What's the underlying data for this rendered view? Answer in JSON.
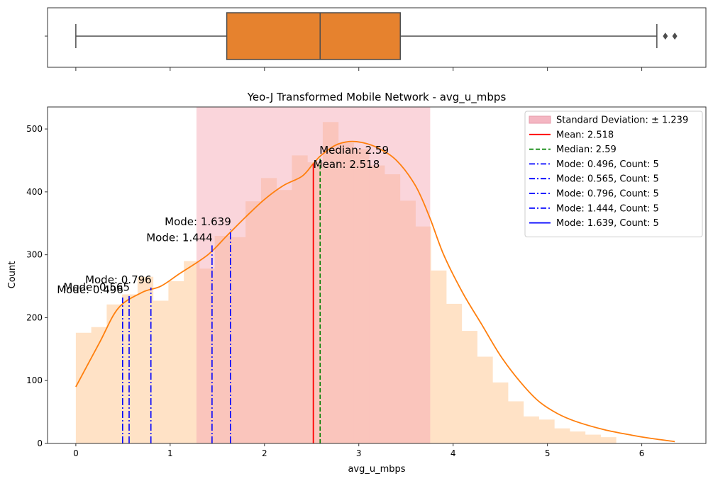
{
  "chart_data": [
    {
      "type": "box",
      "xlim": [
        -0.3,
        6.68
      ],
      "whisker_low": 0.0,
      "q1": 1.6,
      "median": 2.59,
      "q3": 3.44,
      "whisker_high": 6.16,
      "outliers": [
        6.25,
        6.35
      ],
      "xticks": [
        0,
        1,
        2,
        3,
        4,
        5,
        6
      ]
    },
    {
      "type": "histogram",
      "title": "Yeo-J Transformed Mobile Network - avg_u_mbps",
      "xlabel": "avg_u_mbps",
      "ylabel": "Count",
      "xlim": [
        -0.3,
        6.68
      ],
      "ylim": [
        0,
        535
      ],
      "xticks": [
        0,
        1,
        2,
        3,
        4,
        5,
        6
      ],
      "yticks": [
        0,
        100,
        200,
        300,
        400,
        500
      ],
      "bin_width": 0.1636,
      "bins_start": 0.0,
      "counts": [
        176,
        185,
        221,
        237,
        265,
        227,
        258,
        290,
        278,
        330,
        328,
        385,
        422,
        403,
        458,
        447,
        511,
        478,
        468,
        442,
        428,
        386,
        345,
        275,
        222,
        179,
        138,
        97,
        67,
        43,
        38,
        24,
        19,
        14,
        10
      ],
      "kde": [
        [
          0,
          90
        ],
        [
          0.25,
          160
        ],
        [
          0.45,
          215
        ],
        [
          0.7,
          240
        ],
        [
          0.9,
          250
        ],
        [
          1.1,
          270
        ],
        [
          1.4,
          300
        ],
        [
          1.6,
          330
        ],
        [
          1.8,
          360
        ],
        [
          2.0,
          388
        ],
        [
          2.2,
          410
        ],
        [
          2.4,
          425
        ],
        [
          2.518,
          445
        ],
        [
          2.6,
          458
        ],
        [
          2.75,
          474
        ],
        [
          2.9,
          480
        ],
        [
          3.05,
          478
        ],
        [
          3.2,
          470
        ],
        [
          3.4,
          450
        ],
        [
          3.6,
          410
        ],
        [
          3.75,
          360
        ],
        [
          3.9,
          300
        ],
        [
          4.1,
          240
        ],
        [
          4.3,
          190
        ],
        [
          4.5,
          140
        ],
        [
          4.7,
          100
        ],
        [
          4.9,
          68
        ],
        [
          5.1,
          48
        ],
        [
          5.3,
          35
        ],
        [
          5.6,
          22
        ],
        [
          5.9,
          13
        ],
        [
          6.1,
          8
        ],
        [
          6.35,
          3
        ]
      ],
      "std_band": [
        1.279,
        3.757
      ],
      "mean": 2.518,
      "median": 2.59,
      "modes": [
        {
          "x": 0.496,
          "top": 232,
          "label": "Mode: 0.496"
        },
        {
          "x": 0.565,
          "top": 236,
          "label": "Mode: 0.565"
        },
        {
          "x": 0.796,
          "top": 248,
          "label": "Mode: 0.796"
        },
        {
          "x": 1.444,
          "top": 315,
          "label": "Mode: 1.444"
        },
        {
          "x": 1.639,
          "top": 340,
          "label": "Mode: 1.639"
        }
      ],
      "mean_label": "Mean: 2.518",
      "median_label": "Median: 2.59",
      "legend": [
        {
          "label": "Standard Deviation: ± 1.239",
          "kind": "patch",
          "color": "#f4b6c2"
        },
        {
          "label": "Mean: 2.518",
          "kind": "solid",
          "color": "#ff0000"
        },
        {
          "label": "Median: 2.59",
          "kind": "dashed",
          "color": "#008000"
        },
        {
          "label": "Mode: 0.496, Count: 5",
          "kind": "dashdot",
          "color": "#0000ff"
        },
        {
          "label": "Mode: 0.565, Count: 5",
          "kind": "dashdot",
          "color": "#0000ff"
        },
        {
          "label": "Mode: 0.796, Count: 5",
          "kind": "dashdot",
          "color": "#0000ff"
        },
        {
          "label": "Mode: 1.444, Count: 5",
          "kind": "dashdot",
          "color": "#0000ff"
        },
        {
          "label": "Mode: 1.639, Count: 5",
          "kind": "solid",
          "color": "#0000ff"
        }
      ],
      "legend_position": "top-right",
      "colors": {
        "bar": "#ffe2c6",
        "std_band": "#f4a1b0",
        "kde": "#ff7f0e",
        "box": "#e6822e",
        "mean": "#ff0000",
        "median": "#008000",
        "mode": "#0000ff"
      }
    }
  ]
}
